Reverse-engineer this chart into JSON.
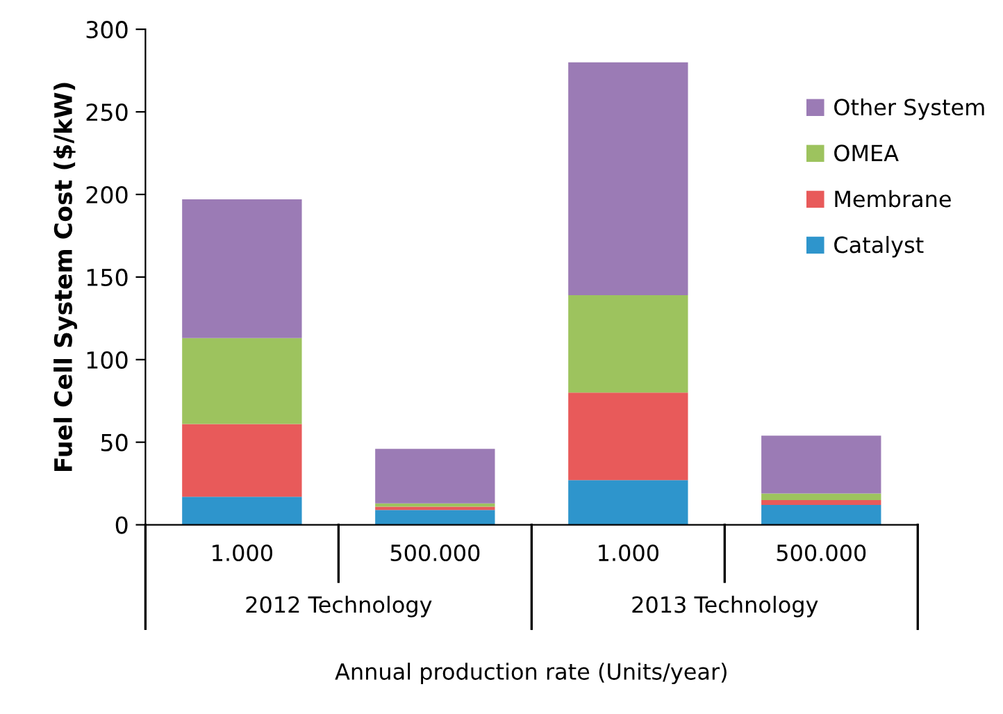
{
  "chart_data": {
    "type": "bar",
    "stacked": true,
    "ylabel": "Fuel Cell System Cost ($/kW)",
    "xlabel": "Annual production rate (Units/year)",
    "categories": [
      "1.000",
      "500.000",
      "1.000",
      "500.000"
    ],
    "annotations": [
      "2012 Technology",
      "2013 Technology"
    ],
    "series": [
      {
        "name": "Catalyst",
        "color": "#2e95cc",
        "values": [
          17,
          9,
          27,
          12
        ]
      },
      {
        "name": "Membrane",
        "color": "#e85a5a",
        "values": [
          44,
          2,
          53,
          3
        ]
      },
      {
        "name": "OMEA",
        "color": "#9dc35e",
        "values": [
          52,
          2,
          59,
          4
        ]
      },
      {
        "name": "Other System",
        "color": "#9b7bb5",
        "values": [
          84,
          33,
          141,
          35
        ]
      }
    ],
    "ylim": [
      0,
      300
    ],
    "yticks": [
      0,
      50,
      100,
      150,
      200,
      250,
      300
    ],
    "legend": "right",
    "grid": false
  }
}
